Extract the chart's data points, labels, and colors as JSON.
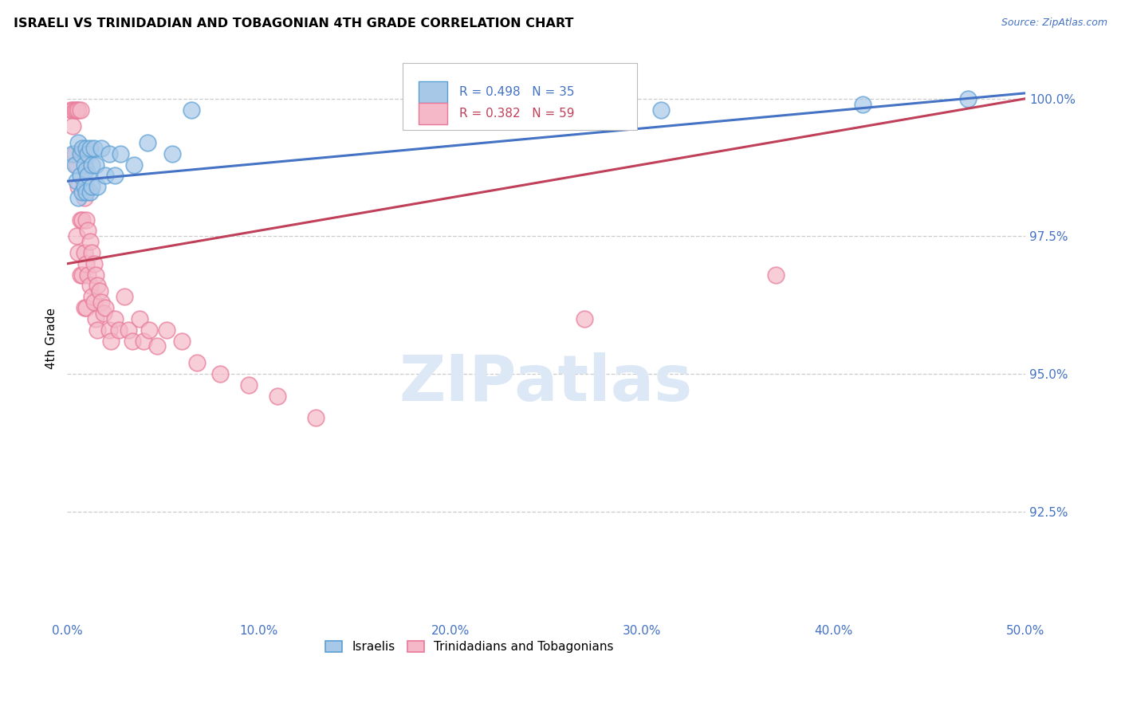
{
  "title": "ISRAELI VS TRINIDADIAN AND TOBAGONIAN 4TH GRADE CORRELATION CHART",
  "source": "Source: ZipAtlas.com",
  "ylabel": "4th Grade",
  "ytick_labels": [
    "92.5%",
    "95.0%",
    "97.5%",
    "100.0%"
  ],
  "ytick_values": [
    0.925,
    0.95,
    0.975,
    1.0
  ],
  "xtick_values": [
    0.0,
    0.1,
    0.2,
    0.3,
    0.4,
    0.5
  ],
  "xtick_labels": [
    "0.0%",
    "10.0%",
    "20.0%",
    "30.0%",
    "40.0%",
    "50.0%"
  ],
  "xlim": [
    0.0,
    0.5
  ],
  "ylim": [
    0.905,
    1.008
  ],
  "legend_blue_label": "Israelis",
  "legend_pink_label": "Trinidadians and Tobagonians",
  "r_blue": "R = 0.498",
  "n_blue": "N = 35",
  "r_pink": "R = 0.382",
  "n_pink": "N = 59",
  "blue_color": "#a8c8e8",
  "pink_color": "#f4b8c8",
  "blue_edge_color": "#5a9fd4",
  "pink_edge_color": "#e87898",
  "blue_line_color": "#4472c4",
  "pink_line_color": "#c0405a",
  "grid_color": "#cccccc",
  "axis_label_color": "#4472c4",
  "watermark_color": "#dce8f5",
  "watermark": "ZIPatlas",
  "israelis_x": [
    0.003,
    0.004,
    0.005,
    0.006,
    0.006,
    0.007,
    0.007,
    0.008,
    0.008,
    0.009,
    0.009,
    0.01,
    0.01,
    0.01,
    0.011,
    0.011,
    0.012,
    0.012,
    0.013,
    0.013,
    0.014,
    0.015,
    0.016,
    0.018,
    0.02,
    0.022,
    0.025,
    0.028,
    0.035,
    0.042,
    0.055,
    0.065,
    0.31,
    0.415,
    0.47
  ],
  "israelis_y": [
    0.99,
    0.988,
    0.985,
    0.992,
    0.982,
    0.99,
    0.986,
    0.983,
    0.991,
    0.988,
    0.984,
    0.991,
    0.987,
    0.983,
    0.99,
    0.986,
    0.983,
    0.991,
    0.988,
    0.984,
    0.991,
    0.988,
    0.984,
    0.991,
    0.986,
    0.99,
    0.986,
    0.99,
    0.988,
    0.992,
    0.99,
    0.998,
    0.998,
    0.999,
    1.0
  ],
  "trini_x": [
    0.002,
    0.003,
    0.003,
    0.004,
    0.004,
    0.005,
    0.005,
    0.005,
    0.006,
    0.006,
    0.006,
    0.007,
    0.007,
    0.007,
    0.008,
    0.008,
    0.008,
    0.009,
    0.009,
    0.009,
    0.01,
    0.01,
    0.01,
    0.011,
    0.011,
    0.012,
    0.012,
    0.013,
    0.013,
    0.014,
    0.014,
    0.015,
    0.015,
    0.016,
    0.016,
    0.017,
    0.018,
    0.019,
    0.02,
    0.022,
    0.023,
    0.025,
    0.027,
    0.03,
    0.032,
    0.034,
    0.038,
    0.04,
    0.043,
    0.047,
    0.052,
    0.06,
    0.068,
    0.08,
    0.095,
    0.11,
    0.13,
    0.27,
    0.37
  ],
  "trini_y": [
    0.998,
    0.998,
    0.995,
    0.998,
    0.99,
    0.998,
    0.988,
    0.975,
    0.998,
    0.984,
    0.972,
    0.998,
    0.978,
    0.968,
    0.99,
    0.978,
    0.968,
    0.982,
    0.972,
    0.962,
    0.978,
    0.97,
    0.962,
    0.976,
    0.968,
    0.974,
    0.966,
    0.972,
    0.964,
    0.97,
    0.963,
    0.968,
    0.96,
    0.966,
    0.958,
    0.965,
    0.963,
    0.961,
    0.962,
    0.958,
    0.956,
    0.96,
    0.958,
    0.964,
    0.958,
    0.956,
    0.96,
    0.956,
    0.958,
    0.955,
    0.958,
    0.956,
    0.952,
    0.95,
    0.948,
    0.946,
    0.942,
    0.96,
    0.968
  ]
}
